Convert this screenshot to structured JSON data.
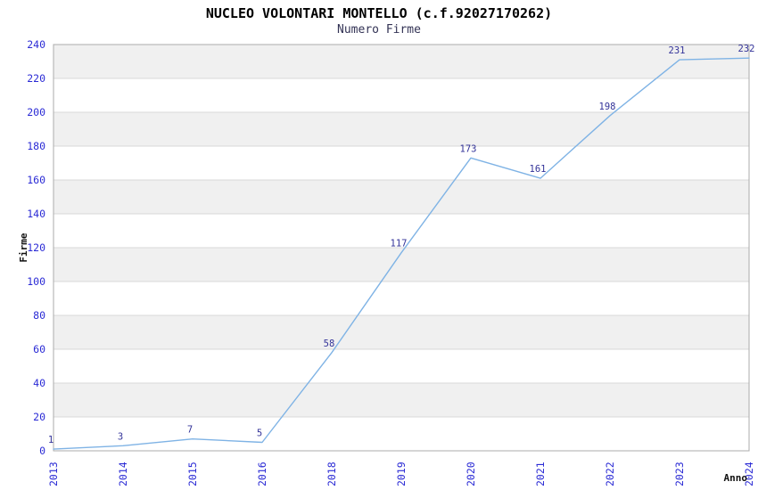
{
  "header": {
    "title": "NUCLEO VOLONTARI MONTELLO (c.f.92027170262)",
    "subtitle": "Numero Firme"
  },
  "chart_data": {
    "type": "line",
    "title": "NUCLEO VOLONTARI MONTELLO (c.f.92027170262)",
    "subtitle": "Numero Firme",
    "xlabel": "Anno",
    "ylabel": "Firme",
    "categories": [
      "2013",
      "2014",
      "2015",
      "2016",
      "2018",
      "2019",
      "2020",
      "2021",
      "2022",
      "2023",
      "2024"
    ],
    "values": [
      1,
      3,
      7,
      5,
      58,
      117,
      173,
      161,
      198,
      231,
      232
    ],
    "ylim": [
      0,
      240
    ],
    "ytick_step": 20,
    "grid": true,
    "legend_position": "none",
    "band_fill_alternating": true,
    "colors": {
      "line": "#7FB3E5",
      "tick_label": "#2B2BD5",
      "data_label": "#333399",
      "band_gray": "#F0F0F0",
      "band_white": "#FFFFFF",
      "gridline": "#D8D8D8",
      "border": "#ABABAB",
      "title": "#000000",
      "subtitle": "#333355",
      "axis_title": "#111111"
    }
  }
}
